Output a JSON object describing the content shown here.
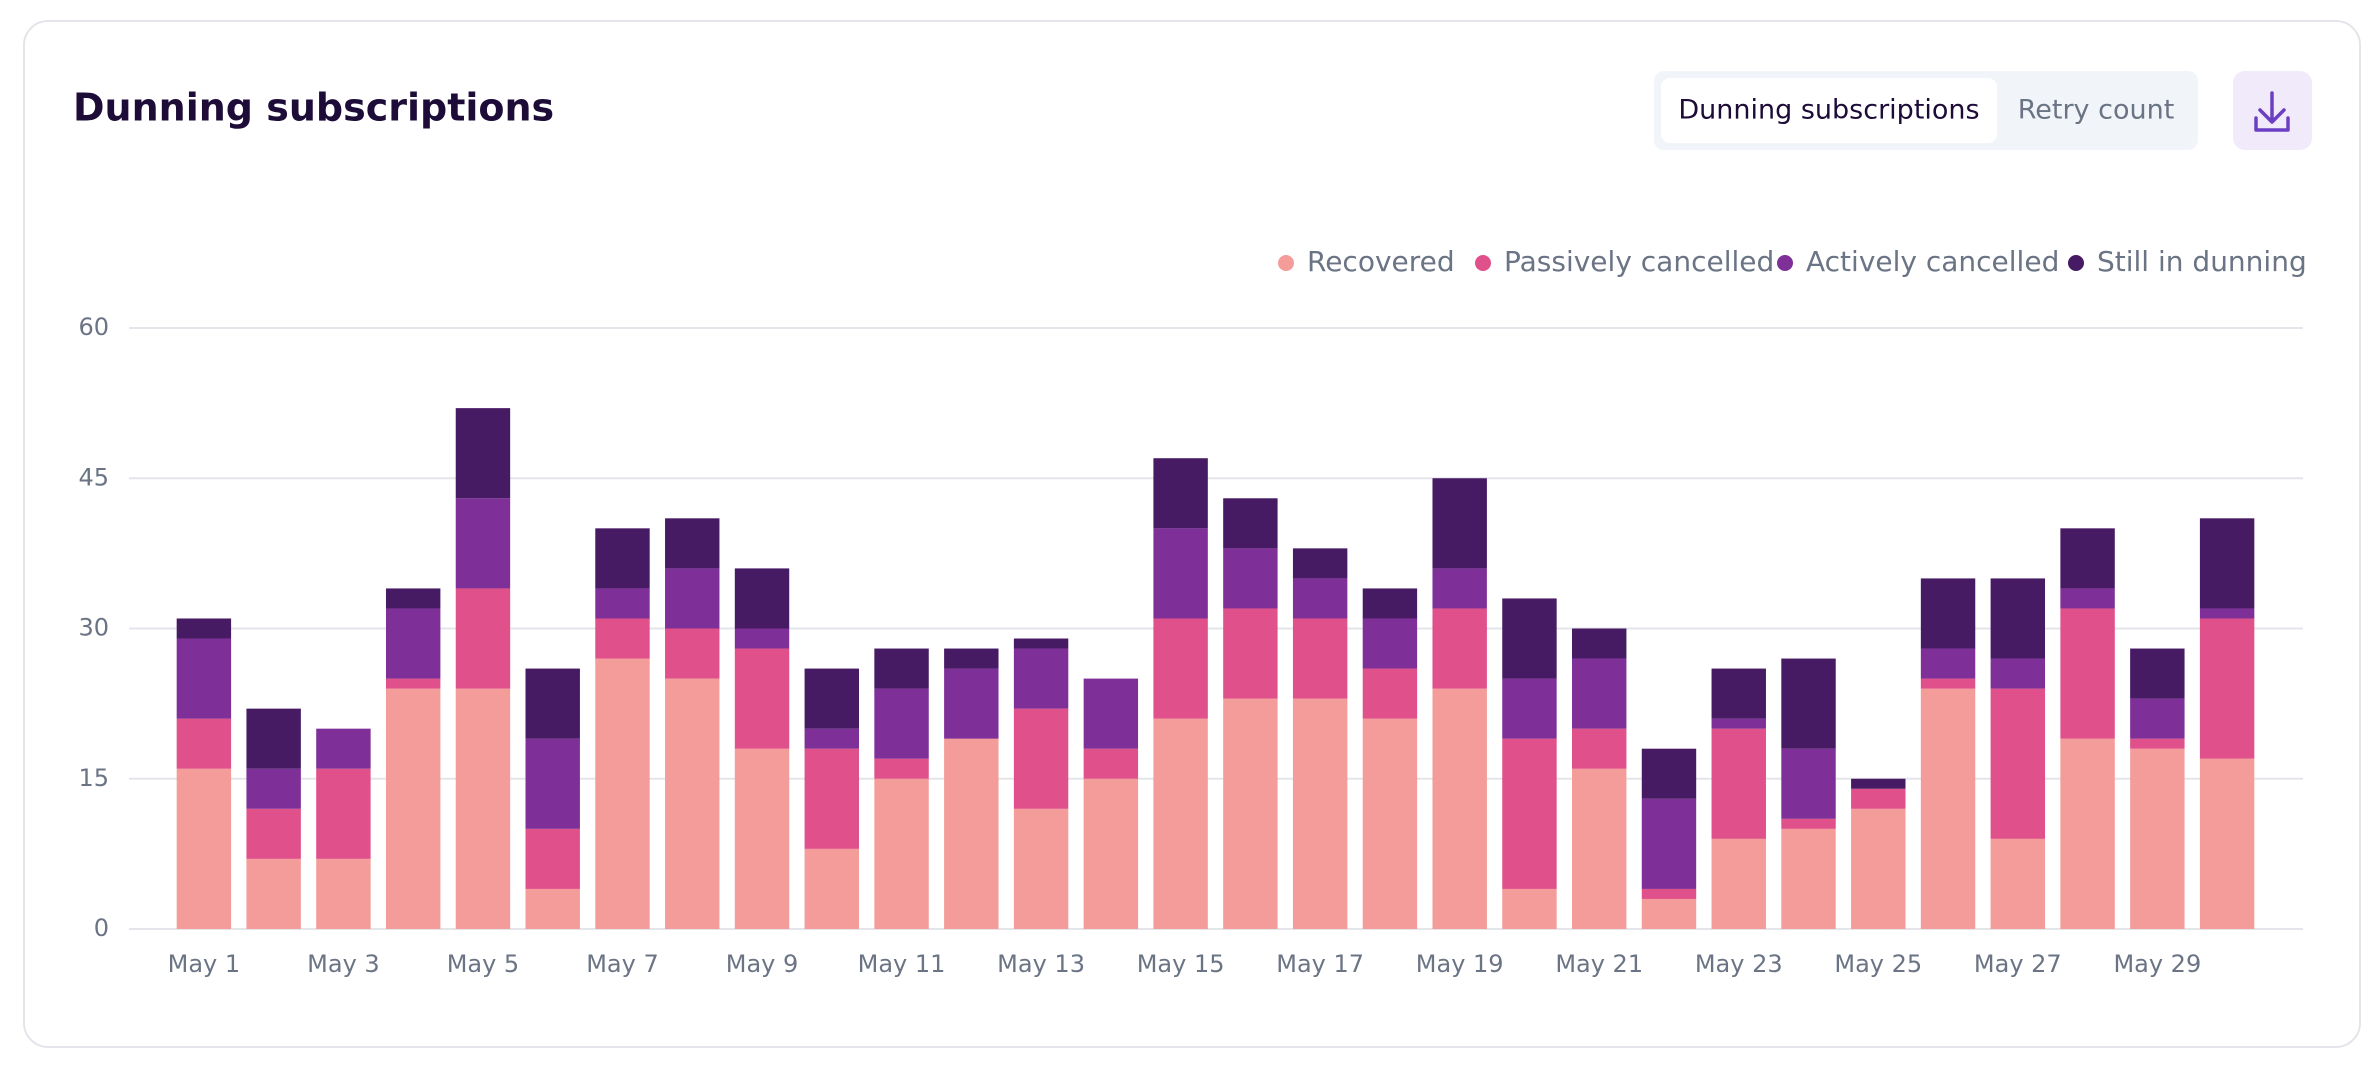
{
  "chart_data": {
    "type": "bar",
    "stacked": true,
    "title": "Dunning subscriptions",
    "categories": [
      "May 1",
      null,
      "May 3",
      null,
      "May 5",
      null,
      "May 7",
      null,
      "May 9",
      null,
      "May 11",
      null,
      "May 13",
      null,
      "May 15",
      null,
      "May 17",
      null,
      "May 19",
      null,
      "May 21",
      null,
      "May 23",
      null,
      "May 25",
      null,
      "May 27",
      null,
      "May 29",
      null
    ],
    "series": [
      {
        "name": "Recovered",
        "color": "#f49c9a",
        "values": [
          16,
          7,
          7,
          24,
          24,
          4,
          27,
          25,
          18,
          8,
          15,
          19,
          12,
          15,
          21,
          23,
          23,
          21,
          24,
          4,
          16,
          3,
          9,
          10,
          12,
          24,
          9,
          19,
          18,
          17
        ]
      },
      {
        "name": "Passively cancelled",
        "color": "#e0508a",
        "values": [
          5,
          5,
          9,
          1,
          10,
          6,
          4,
          5,
          10,
          10,
          2,
          0,
          10,
          3,
          10,
          9,
          8,
          5,
          8,
          15,
          4,
          1,
          11,
          1,
          2,
          1,
          15,
          13,
          1,
          14
        ]
      },
      {
        "name": "Actively cancelled",
        "color": "#7e2f98",
        "values": [
          8,
          4,
          4,
          7,
          9,
          9,
          3,
          6,
          2,
          2,
          7,
          7,
          6,
          7,
          9,
          6,
          4,
          5,
          4,
          6,
          7,
          9,
          1,
          7,
          0,
          3,
          3,
          2,
          4,
          1
        ]
      },
      {
        "name": "Still in dunning",
        "color": "#461b63",
        "values": [
          2,
          6,
          0,
          2,
          9,
          7,
          6,
          5,
          6,
          6,
          4,
          2,
          1,
          0,
          7,
          5,
          3,
          3,
          9,
          8,
          3,
          5,
          5,
          9,
          1,
          7,
          8,
          6,
          5,
          9
        ]
      }
    ],
    "ylim": [
      0,
      60
    ],
    "yticks": [
      0,
      15,
      30,
      45,
      60
    ],
    "grid": true,
    "legend": "top-right"
  },
  "controls": {
    "tabs": [
      "Dunning subscriptions",
      "Retry count"
    ],
    "active_tab": 0
  }
}
